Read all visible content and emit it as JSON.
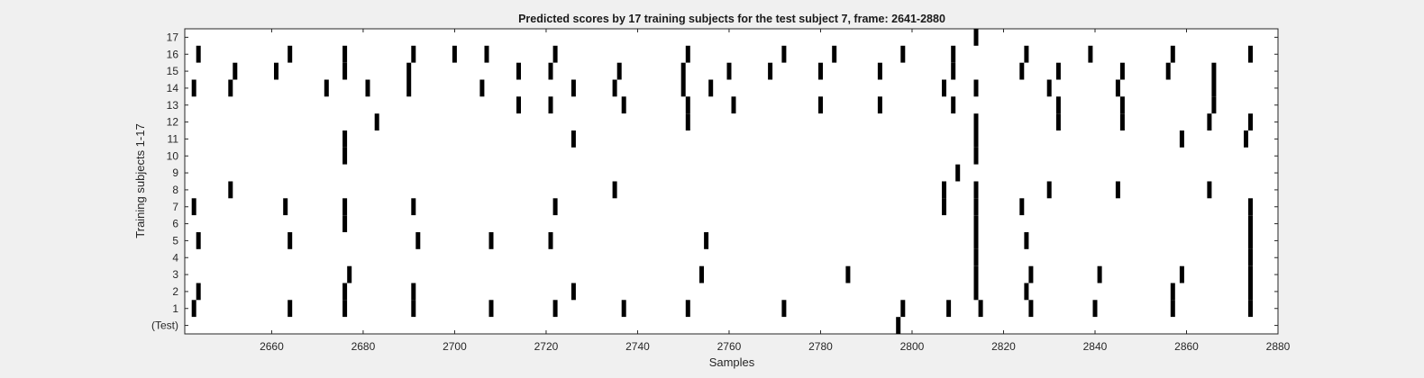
{
  "chart_data": {
    "type": "raster",
    "title": "Predicted scores by 17 training subjects for the test subject 7, frame: 2641-2880",
    "xlabel": "Samples",
    "ylabel": "Training subjects 1-17",
    "xlim": [
      2641,
      2880
    ],
    "ylim": [
      -0.5,
      17.5
    ],
    "x_ticks": [
      2660,
      2680,
      2700,
      2720,
      2740,
      2760,
      2780,
      2800,
      2820,
      2840,
      2860,
      2880
    ],
    "y_ticks": [
      0,
      1,
      2,
      3,
      4,
      5,
      6,
      7,
      8,
      9,
      10,
      11,
      12,
      13,
      14,
      15,
      16,
      17
    ],
    "y_tick_labels": [
      "(Test)",
      "1",
      "2",
      "3",
      "4",
      "5",
      "6",
      "7",
      "8",
      "9",
      "10",
      "11",
      "12",
      "13",
      "14",
      "15",
      "16",
      "17"
    ],
    "marker_color": "#000000",
    "series": [
      {
        "row": 0,
        "x": [
          2797
        ]
      },
      {
        "row": 1,
        "x": [
          2643,
          2664,
          2676,
          2691,
          2708,
          2722,
          2737,
          2751,
          2772,
          2798,
          2808,
          2815,
          2826,
          2840,
          2857,
          2874
        ]
      },
      {
        "row": 2,
        "x": [
          2644,
          2676,
          2691,
          2726,
          2814,
          2825,
          2857,
          2874
        ]
      },
      {
        "row": 3,
        "x": [
          2677,
          2754,
          2786,
          2814,
          2826,
          2841,
          2859,
          2874
        ]
      },
      {
        "row": 4,
        "x": [
          2814,
          2874
        ]
      },
      {
        "row": 5,
        "x": [
          2644,
          2664,
          2692,
          2708,
          2721,
          2755,
          2814,
          2825,
          2874
        ]
      },
      {
        "row": 6,
        "x": [
          2676,
          2814,
          2874
        ]
      },
      {
        "row": 7,
        "x": [
          2643,
          2663,
          2676,
          2691,
          2722,
          2807,
          2814,
          2824,
          2874
        ]
      },
      {
        "row": 8,
        "x": [
          2651,
          2735,
          2807,
          2814,
          2830,
          2845,
          2865
        ]
      },
      {
        "row": 9,
        "x": [
          2810
        ]
      },
      {
        "row": 10,
        "x": [
          2676,
          2814
        ]
      },
      {
        "row": 11,
        "x": [
          2676,
          2726,
          2814,
          2859,
          2873
        ]
      },
      {
        "row": 12,
        "x": [
          2683,
          2751,
          2814,
          2832,
          2846,
          2865,
          2874
        ]
      },
      {
        "row": 13,
        "x": [
          2714,
          2721,
          2737,
          2751,
          2761,
          2780,
          2793,
          2809,
          2832,
          2846,
          2866
        ]
      },
      {
        "row": 14,
        "x": [
          2643,
          2651,
          2672,
          2681,
          2690,
          2706,
          2726,
          2735,
          2750,
          2756,
          2807,
          2814,
          2830,
          2845,
          2866
        ]
      },
      {
        "row": 15,
        "x": [
          2652,
          2661,
          2676,
          2690,
          2714,
          2721,
          2736,
          2750,
          2760,
          2769,
          2780,
          2793,
          2809,
          2824,
          2832,
          2846,
          2856,
          2866
        ]
      },
      {
        "row": 16,
        "x": [
          2644,
          2664,
          2676,
          2691,
          2700,
          2707,
          2722,
          2751,
          2772,
          2783,
          2798,
          2809,
          2825,
          2839,
          2857,
          2874
        ]
      },
      {
        "row": 17,
        "x": [
          2814
        ]
      }
    ]
  }
}
